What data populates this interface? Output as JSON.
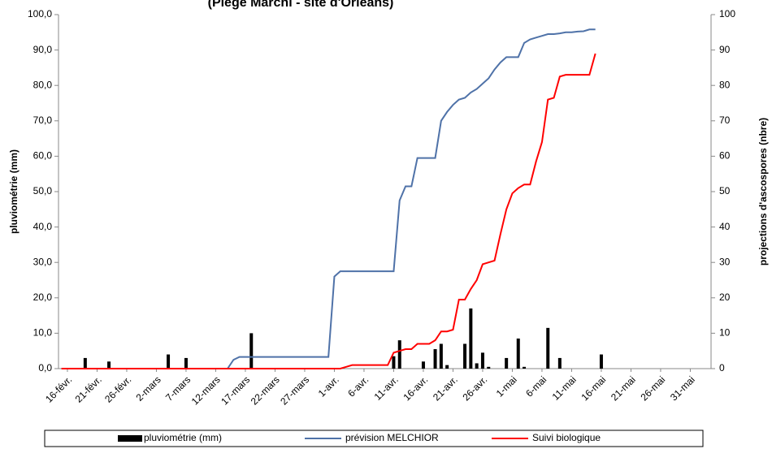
{
  "chart_data": {
    "type": "combo",
    "title": "(Piège Marchi - site d'Orléans)",
    "y_label": "pluviométrie (mm)",
    "y2_label": "projections d'ascospores (nbre)",
    "categories": [
      null,
      "16-févr.",
      null,
      null,
      null,
      null,
      "21-févr.",
      null,
      null,
      null,
      null,
      "26-févr.",
      null,
      null,
      null,
      null,
      "2-mars",
      null,
      null,
      null,
      null,
      "7-mars",
      null,
      null,
      null,
      null,
      "12-mars",
      null,
      null,
      null,
      null,
      "17-mars",
      null,
      null,
      null,
      null,
      "22-mars",
      null,
      null,
      null,
      null,
      "27-mars",
      null,
      null,
      null,
      null,
      "1-avr.",
      null,
      null,
      null,
      null,
      "6-avr.",
      null,
      null,
      null,
      null,
      "11-avr.",
      null,
      null,
      null,
      null,
      "16-avr.",
      null,
      null,
      null,
      null,
      "21-avr.",
      null,
      null,
      null,
      null,
      "26-avr.",
      null,
      null,
      null,
      null,
      "1-mai",
      null,
      null,
      null,
      null,
      "6-mai",
      null,
      null,
      null,
      null,
      "11-mai",
      null,
      null,
      null,
      null,
      "16-mai",
      null,
      null,
      null,
      null,
      "21-mai",
      null,
      null,
      null,
      null,
      "26-mai",
      null,
      null,
      null,
      null,
      "31-mai",
      null,
      null,
      null
    ],
    "series": [
      {
        "name": "pluviométrie (mm)",
        "type": "bar",
        "color": "#000000",
        "values": [
          0,
          0,
          0,
          0,
          3,
          0,
          0,
          0,
          2,
          0,
          0,
          0,
          0,
          0,
          0,
          0,
          0,
          0,
          4,
          0,
          0,
          3,
          0,
          0,
          0,
          0,
          0,
          0,
          0,
          0,
          0,
          0,
          10,
          0,
          0,
          0,
          0,
          0,
          0,
          0,
          0,
          0,
          0,
          0,
          0,
          0,
          0,
          0,
          0,
          0,
          0,
          0,
          0,
          0,
          0,
          0,
          3.5,
          8,
          0,
          0,
          0,
          2,
          0,
          5.5,
          7,
          1,
          0,
          0,
          7,
          17,
          1.5,
          4.5,
          0.5,
          0,
          0,
          3,
          0,
          8.5,
          0.5,
          0,
          0,
          0,
          11.5,
          0,
          3,
          0,
          0,
          0,
          0,
          0,
          0,
          4,
          null,
          null,
          null,
          null,
          null,
          null,
          null,
          null,
          null,
          null,
          null,
          null,
          null,
          null,
          null,
          null,
          null,
          null
        ]
      },
      {
        "name": "prévision MELCHIOR",
        "type": "line",
        "axis": "y2",
        "color": "#4f72a8",
        "values": [
          0,
          0,
          0,
          0,
          0,
          0,
          0,
          0,
          0,
          0,
          0,
          0,
          0,
          0,
          0,
          0,
          0,
          0,
          0,
          0,
          0,
          0,
          0,
          0,
          0,
          0,
          0,
          0,
          0,
          2.5,
          3.3,
          3.3,
          3.3,
          3.3,
          3.3,
          3.3,
          3.3,
          3.3,
          3.3,
          3.3,
          3.3,
          3.3,
          3.3,
          3.3,
          3.3,
          3.3,
          26,
          27.5,
          27.5,
          27.5,
          27.5,
          27.5,
          27.5,
          27.5,
          27.5,
          27.5,
          27.5,
          47.5,
          51.5,
          51.5,
          59.5,
          59.5,
          59.5,
          59.5,
          70,
          72.5,
          74.5,
          76,
          76.5,
          78,
          79,
          80.5,
          82,
          84.5,
          86.5,
          88,
          88,
          88,
          92,
          93,
          93.5,
          94,
          94.5,
          94.5,
          94.7,
          95,
          95,
          95.2,
          95.3,
          95.8,
          95.8,
          null,
          null,
          null,
          null,
          null,
          null,
          null,
          null,
          null,
          null,
          null,
          null,
          null,
          null,
          null,
          null,
          null,
          null,
          null
        ]
      },
      {
        "name": "Suivi biologique",
        "type": "line",
        "axis": "y2",
        "color": "#ff0000",
        "values": [
          0,
          0,
          0,
          0,
          0,
          0,
          0,
          0,
          0,
          0,
          0,
          0,
          0,
          0,
          0,
          0,
          0,
          0,
          0,
          0,
          0,
          0,
          0,
          0,
          0,
          0,
          0,
          0,
          0,
          0,
          0,
          0,
          0,
          0,
          0,
          0,
          0,
          0,
          0,
          0,
          0,
          0,
          0,
          0,
          0,
          0,
          0,
          0,
          0.5,
          1,
          1,
          1,
          1,
          1,
          1,
          1,
          4.5,
          5,
          5.5,
          5.5,
          7,
          7,
          7,
          8,
          10.5,
          10.5,
          11,
          19.5,
          19.5,
          22.5,
          25,
          29.5,
          30,
          30.5,
          38,
          45,
          49.5,
          51,
          52,
          52,
          58.5,
          64,
          76,
          76.5,
          82.5,
          83,
          83,
          83,
          83,
          83,
          89,
          null,
          null,
          null,
          null,
          null,
          null,
          null,
          null,
          null,
          null,
          null,
          null,
          null,
          null,
          null,
          null,
          null,
          null,
          null
        ]
      }
    ],
    "ylim": [
      0,
      100
    ],
    "yticks": [
      {
        "value": 0,
        "label": "0,0"
      },
      {
        "value": 10,
        "label": "10,0"
      },
      {
        "value": 20,
        "label": "20,0"
      },
      {
        "value": 30,
        "label": "30,0"
      },
      {
        "value": 40,
        "label": "40,0"
      },
      {
        "value": 50,
        "label": "50,0"
      },
      {
        "value": 60,
        "label": "60,0"
      },
      {
        "value": 70,
        "label": "70,0"
      },
      {
        "value": 80,
        "label": "80,0"
      },
      {
        "value": 90,
        "label": "90,0"
      },
      {
        "value": 100,
        "label": "100,0"
      }
    ],
    "y2lim": [
      0,
      100
    ],
    "y2ticks": [
      0,
      10,
      20,
      30,
      40,
      50,
      60,
      70,
      80,
      90,
      100
    ],
    "legend": "bottom"
  }
}
